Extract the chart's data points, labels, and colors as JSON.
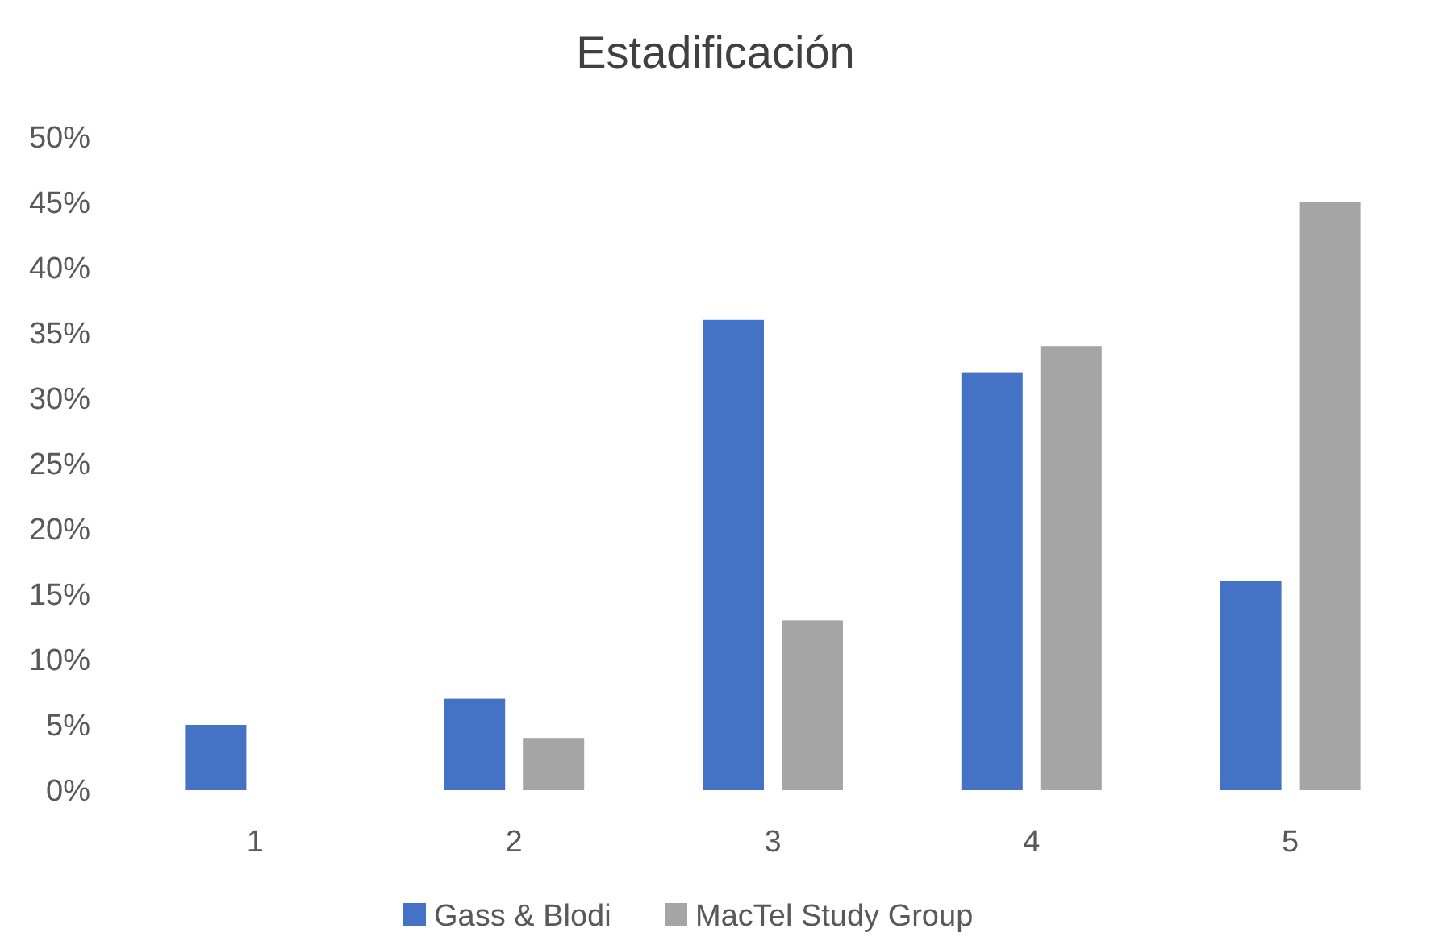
{
  "chart_data": {
    "type": "bar",
    "title": "Estadificación",
    "categories": [
      "1",
      "2",
      "3",
      "4",
      "5"
    ],
    "series": [
      {
        "name": "Gass & Blodi",
        "color": "#4472c4",
        "values": [
          5,
          7,
          36,
          32,
          16
        ]
      },
      {
        "name": "MacTel Study Group",
        "color": "#a5a5a5",
        "values": [
          0,
          4,
          13,
          34,
          45
        ]
      }
    ],
    "ylim": [
      0,
      50
    ],
    "yticks": [
      {
        "value": 0,
        "label": "0%"
      },
      {
        "value": 5,
        "label": "5%"
      },
      {
        "value": 10,
        "label": "10%"
      },
      {
        "value": 15,
        "label": "15%"
      },
      {
        "value": 20,
        "label": "20%"
      },
      {
        "value": 25,
        "label": "25%"
      },
      {
        "value": 30,
        "label": "30%"
      },
      {
        "value": 35,
        "label": "35%"
      },
      {
        "value": 40,
        "label": "40%"
      },
      {
        "value": 45,
        "label": "45%"
      },
      {
        "value": 50,
        "label": "50%"
      }
    ],
    "grid": false,
    "legend": "bottom"
  }
}
